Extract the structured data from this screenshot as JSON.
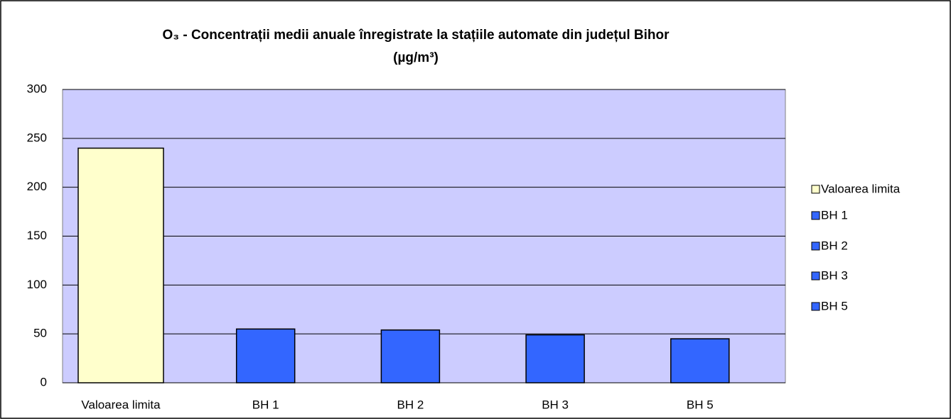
{
  "chart_data": {
    "type": "bar",
    "title": [
      "O₃ - Concentrații medii anuale înregistrate la stațiile automate din județul Bihor",
      "(µg/m³)"
    ],
    "categories": [
      "Valoarea limita",
      "BH 1",
      "BH 2",
      "BH 3",
      "BH 5"
    ],
    "values": [
      240,
      55,
      54,
      49,
      45
    ],
    "colors": [
      "#ffffcc",
      "#3366ff",
      "#3366ff",
      "#3366ff",
      "#3366ff"
    ],
    "ylim": [
      0,
      300
    ],
    "yticks": [
      0,
      50,
      100,
      150,
      200,
      250,
      300
    ],
    "grid": true,
    "legend": "right"
  }
}
